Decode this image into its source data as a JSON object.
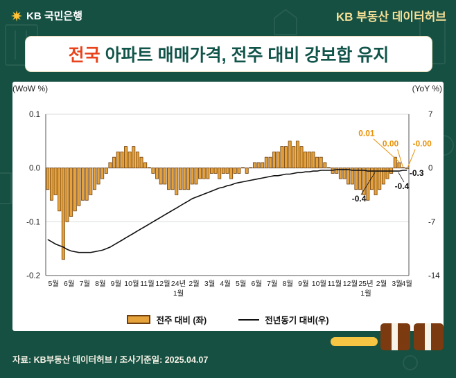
{
  "header": {
    "logo_text": "KB 국민은행",
    "brand": "KB 부동산 데이터허브"
  },
  "title": {
    "highlight": "전국",
    "rest": " 아파트 매매가격, 전주 대비 강보합 유지"
  },
  "footer": {
    "source": "자료: KB부동산 데이터허브 / 조사기준일: 2025.04.07"
  },
  "colors": {
    "background": "#155042",
    "bar_fill": "#E6A33C",
    "bar_stroke": "#6F3F10",
    "line": "#111111",
    "annotation_orange": "#E8920A",
    "title_highlight": "#E8431C",
    "title_text": "#11544A",
    "accent_yellow": "#F6C544",
    "accent_brown": "#7B3A0F"
  },
  "chart_data": {
    "type": "bar+line",
    "title": "전국 아파트 매매가격, 전주 대비 강보합 유지",
    "left_axis": {
      "label": "(WoW %)",
      "ticks": [
        0.1,
        0,
        -0.1,
        -0.2
      ],
      "tick_labels": [
        "0.1",
        "0.0",
        "-0.1",
        "-0.2"
      ],
      "range": [
        -0.2,
        0.1
      ]
    },
    "right_axis": {
      "label": "(YoY %)",
      "ticks": [
        7,
        0,
        -7,
        -14
      ],
      "tick_labels": [
        "7",
        "0",
        "-7",
        "-14"
      ],
      "range": [
        -14,
        7
      ]
    },
    "x_tick_labels": [
      "5월",
      "6월",
      "7월",
      "8월",
      "9월",
      "10월",
      "11월",
      "12월",
      "24년|1월",
      "2월",
      "3월",
      "4월",
      "5월",
      "6월",
      "7월",
      "8월",
      "9월",
      "10월",
      "11월",
      "12월",
      "25년|1월",
      "2월",
      "3월",
      "4월"
    ],
    "grid": true,
    "legend_position": "bottom",
    "series": [
      {
        "name": "전주 대비 (좌)",
        "type": "bar",
        "axis": "left",
        "values": [
          -0.04,
          -0.06,
          -0.05,
          -0.08,
          -0.17,
          -0.1,
          -0.09,
          -0.08,
          -0.07,
          -0.06,
          -0.06,
          -0.05,
          -0.04,
          -0.03,
          -0.02,
          -0.01,
          0.01,
          0.02,
          0.03,
          0.03,
          0.04,
          0.03,
          0.04,
          0.03,
          0.02,
          0.01,
          0.0,
          -0.01,
          -0.02,
          -0.03,
          -0.03,
          -0.04,
          -0.04,
          -0.05,
          -0.04,
          -0.04,
          -0.04,
          -0.03,
          -0.03,
          -0.02,
          -0.02,
          -0.02,
          -0.01,
          -0.01,
          -0.02,
          -0.01,
          -0.01,
          -0.02,
          -0.01,
          -0.01,
          0.0,
          -0.01,
          0.0,
          0.01,
          0.01,
          0.01,
          0.02,
          0.02,
          0.03,
          0.03,
          0.04,
          0.04,
          0.05,
          0.04,
          0.05,
          0.04,
          0.03,
          0.03,
          0.03,
          0.02,
          0.02,
          0.01,
          0.0,
          -0.01,
          -0.01,
          -0.02,
          -0.02,
          -0.03,
          -0.03,
          -0.04,
          -0.04,
          -0.05,
          -0.06,
          -0.04,
          -0.05,
          -0.04,
          -0.03,
          -0.02,
          -0.01,
          0.02,
          0.01,
          0.0,
          -0.0
        ]
      },
      {
        "name": "전년동기 대비(우)",
        "type": "line",
        "axis": "right",
        "values": [
          -9.3,
          -9.6,
          -9.9,
          -10.1,
          -10.3,
          -10.6,
          -10.8,
          -10.9,
          -11.0,
          -11.0,
          -11.0,
          -11.0,
          -10.9,
          -10.8,
          -10.7,
          -10.5,
          -10.3,
          -10.0,
          -9.7,
          -9.4,
          -9.1,
          -8.8,
          -8.5,
          -8.2,
          -7.9,
          -7.6,
          -7.3,
          -7.0,
          -6.7,
          -6.4,
          -6.1,
          -5.8,
          -5.5,
          -5.2,
          -4.9,
          -4.6,
          -4.3,
          -4.0,
          -3.8,
          -3.6,
          -3.4,
          -3.2,
          -3.0,
          -2.8,
          -2.6,
          -2.5,
          -2.3,
          -2.2,
          -2.0,
          -1.9,
          -1.8,
          -1.7,
          -1.6,
          -1.5,
          -1.4,
          -1.3,
          -1.2,
          -1.1,
          -1.0,
          -1.0,
          -0.9,
          -0.8,
          -0.8,
          -0.7,
          -0.6,
          -0.6,
          -0.5,
          -0.5,
          -0.4,
          -0.4,
          -0.3,
          -0.3,
          -0.3,
          -0.3,
          -0.2,
          -0.2,
          -0.2,
          -0.2,
          -0.3,
          -0.3,
          -0.3,
          -0.3,
          -0.4,
          -0.4,
          -0.4,
          -0.4,
          -0.4,
          -0.4,
          -0.4,
          -0.4,
          -0.4,
          -0.3,
          -0.3
        ]
      }
    ],
    "annotations": {
      "bar_labels": [
        {
          "text": "0.01",
          "index": 90
        },
        {
          "text": "0.00",
          "index": 91
        },
        {
          "text": "-0.00",
          "index": 92
        }
      ],
      "line_labels": [
        {
          "text": "-0.4",
          "index": 84
        },
        {
          "text": "-0.4",
          "index": 90
        },
        {
          "text": "-0.3",
          "index": 92
        }
      ]
    }
  }
}
